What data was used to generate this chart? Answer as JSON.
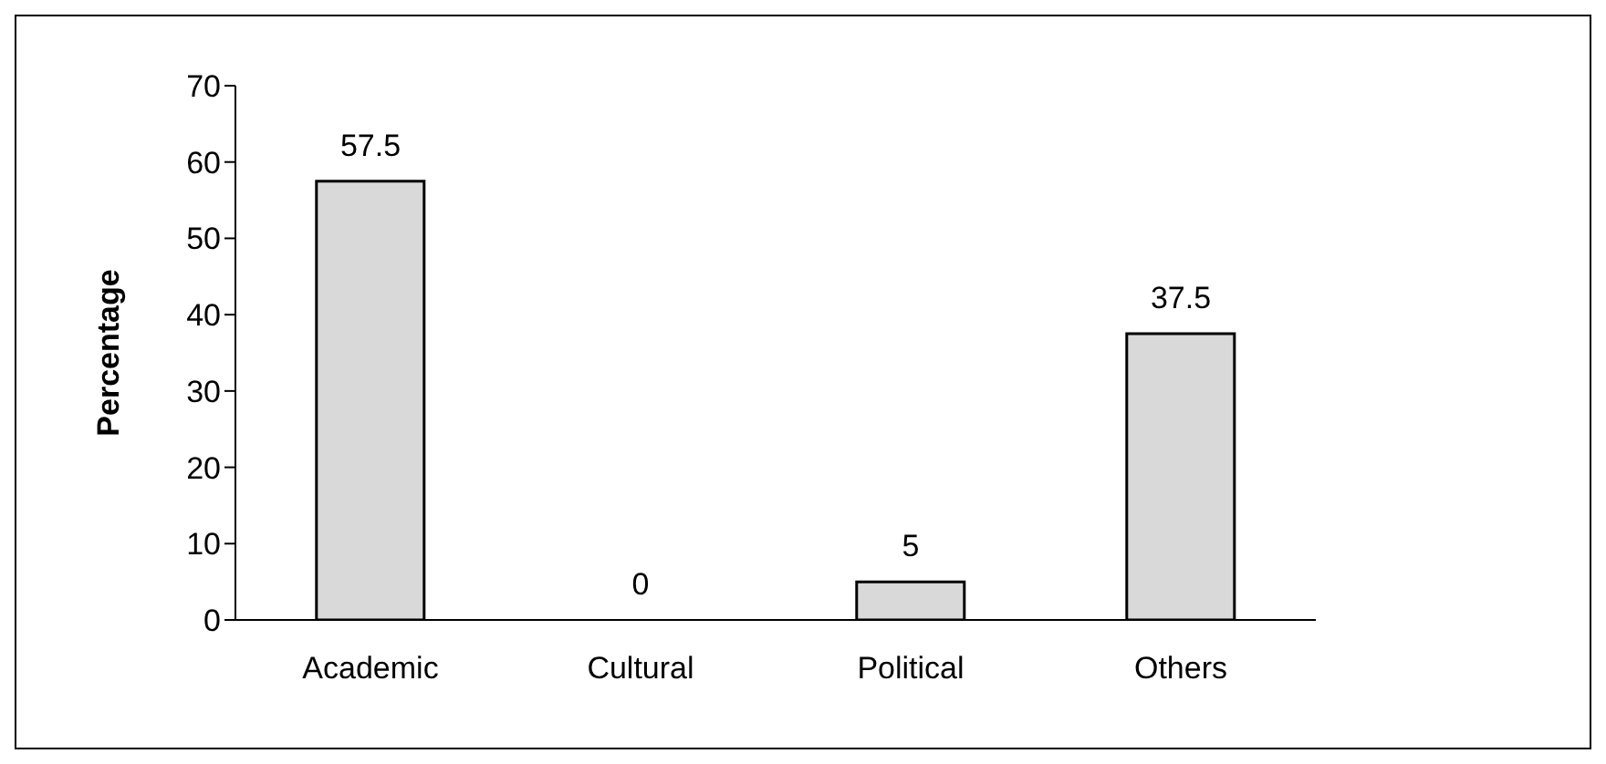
{
  "chart_data": {
    "type": "bar",
    "ylabel": "Percentage",
    "categories": [
      "Academic",
      "Cultural",
      "Political",
      "Others"
    ],
    "values": [
      57.5,
      0,
      5,
      37.5
    ],
    "color": "#d9d9d9",
    "ylim": [
      0,
      70
    ],
    "yticks": [
      0,
      10,
      20,
      30,
      40,
      50,
      60,
      70
    ],
    "grid": false,
    "data_labels": true
  }
}
